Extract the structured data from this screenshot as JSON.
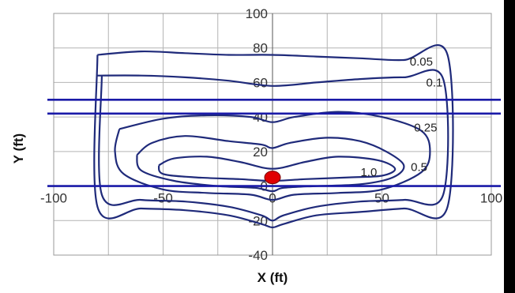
{
  "chart_data": {
    "type": "line",
    "title": "",
    "xlabel": "X (ft)",
    "ylabel": "Y (ft)",
    "xlim": [
      -100,
      100
    ],
    "ylim": [
      -40,
      100
    ],
    "x_ticks": [
      -100,
      -50,
      0,
      50,
      100
    ],
    "y_ticks": [
      -40,
      -20,
      0,
      20,
      40,
      60,
      80,
      100
    ],
    "x_tick_labels": [
      "-100",
      "-50",
      "0",
      "50",
      "100"
    ],
    "y_tick_labels": [
      "-40",
      "-20",
      "0",
      "20",
      "40",
      "60",
      "80",
      "100"
    ],
    "grid": true,
    "horizontal_lines": [
      {
        "y": 50,
        "color": "#1a1aa8"
      },
      {
        "y": 42,
        "color": "#1a1aa8"
      },
      {
        "y": 0,
        "color": "#1a1aa8"
      }
    ],
    "contours": [
      {
        "level": "0.05",
        "label_at": [
          68,
          72
        ],
        "points": [
          [
            -80,
            76
          ],
          [
            -60,
            78
          ],
          [
            -40,
            77
          ],
          [
            -20,
            76
          ],
          [
            0,
            76
          ],
          [
            20,
            75
          ],
          [
            40,
            74
          ],
          [
            60,
            73
          ],
          [
            80,
            76
          ],
          [
            80,
            -12
          ],
          [
            60,
            -13
          ],
          [
            40,
            -15
          ],
          [
            20,
            -17
          ],
          [
            5,
            -22
          ],
          [
            0,
            -24
          ],
          [
            -5,
            -22
          ],
          [
            -20,
            -17
          ],
          [
            -40,
            -14
          ],
          [
            -60,
            -13
          ],
          [
            -80,
            -12
          ],
          [
            -80,
            76
          ]
        ]
      },
      {
        "level": "0.1",
        "label_at": [
          74,
          60
        ],
        "points": [
          [
            -80,
            64
          ],
          [
            -60,
            64
          ],
          [
            -40,
            63
          ],
          [
            -20,
            61
          ],
          [
            0,
            58
          ],
          [
            20,
            60
          ],
          [
            40,
            62
          ],
          [
            60,
            63
          ],
          [
            78,
            62
          ],
          [
            78,
            -5
          ],
          [
            60,
            -8
          ],
          [
            40,
            -9
          ],
          [
            20,
            -12
          ],
          [
            5,
            -17
          ],
          [
            0,
            -20
          ],
          [
            -5,
            -17
          ],
          [
            -20,
            -12
          ],
          [
            -40,
            -9
          ],
          [
            -60,
            -8
          ],
          [
            -78,
            -5
          ],
          [
            -78,
            64
          ]
        ]
      },
      {
        "level": "0.25",
        "label_at": [
          70,
          34
        ],
        "points": [
          [
            -70,
            33
          ],
          [
            -50,
            39
          ],
          [
            -30,
            41
          ],
          [
            -10,
            40
          ],
          [
            0,
            37
          ],
          [
            10,
            40
          ],
          [
            30,
            43
          ],
          [
            50,
            40
          ],
          [
            68,
            32
          ],
          [
            72,
            20
          ],
          [
            68,
            8
          ],
          [
            50,
            -2
          ],
          [
            30,
            -4
          ],
          [
            10,
            -5
          ],
          [
            0,
            -8
          ],
          [
            -10,
            -5
          ],
          [
            -30,
            -4
          ],
          [
            -50,
            -2
          ],
          [
            -68,
            7
          ],
          [
            -72,
            20
          ],
          [
            -70,
            33
          ]
        ]
      },
      {
        "level": "0.5",
        "label_at": [
          67,
          11
        ],
        "points": [
          [
            -62,
            18
          ],
          [
            -55,
            25
          ],
          [
            -40,
            29
          ],
          [
            -20,
            26
          ],
          [
            -5,
            24
          ],
          [
            0,
            22
          ],
          [
            8,
            25
          ],
          [
            25,
            28
          ],
          [
            40,
            26
          ],
          [
            52,
            20
          ],
          [
            60,
            12
          ],
          [
            55,
            5
          ],
          [
            40,
            1
          ],
          [
            20,
            0
          ],
          [
            5,
            -1
          ],
          [
            0,
            -3
          ],
          [
            -8,
            -1
          ],
          [
            -25,
            0
          ],
          [
            -45,
            3
          ],
          [
            -60,
            9
          ],
          [
            -62,
            18
          ]
        ]
      },
      {
        "level": "1.0",
        "label_at": [
          44,
          8
        ],
        "points": [
          [
            -52,
            12
          ],
          [
            -45,
            16
          ],
          [
            -30,
            17
          ],
          [
            -15,
            14
          ],
          [
            0,
            10
          ],
          [
            15,
            14
          ],
          [
            30,
            17
          ],
          [
            48,
            15
          ],
          [
            56,
            10
          ],
          [
            50,
            6
          ],
          [
            35,
            5
          ],
          [
            15,
            4
          ],
          [
            0,
            3
          ],
          [
            -15,
            4
          ],
          [
            -35,
            5
          ],
          [
            -50,
            7
          ],
          [
            -52,
            12
          ]
        ]
      }
    ],
    "marker": {
      "x": 0,
      "y": 5,
      "color": "#e00000"
    }
  }
}
